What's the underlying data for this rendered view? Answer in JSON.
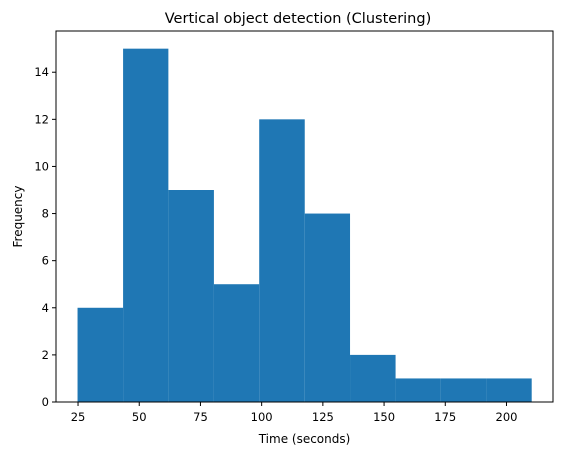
{
  "chart_data": {
    "type": "histogram",
    "title": "Vertical object detection (Clustering)",
    "xlabel": "Time (seconds)",
    "ylabel": "Frequency",
    "xlim": [
      16,
      219
    ],
    "ylim": [
      0,
      15.75
    ],
    "xticks": [
      25,
      50,
      75,
      100,
      125,
      150,
      175,
      200
    ],
    "yticks": [
      0,
      2,
      4,
      6,
      8,
      10,
      12,
      14
    ],
    "bin_edges": [
      24.8,
      43.4,
      61.9,
      80.5,
      99.0,
      117.6,
      136.1,
      154.7,
      173.2,
      191.8,
      210.3
    ],
    "values": [
      4,
      15,
      9,
      5,
      12,
      8,
      2,
      1,
      1,
      1
    ],
    "bar_color": "#1f77b4",
    "grid": false
  }
}
